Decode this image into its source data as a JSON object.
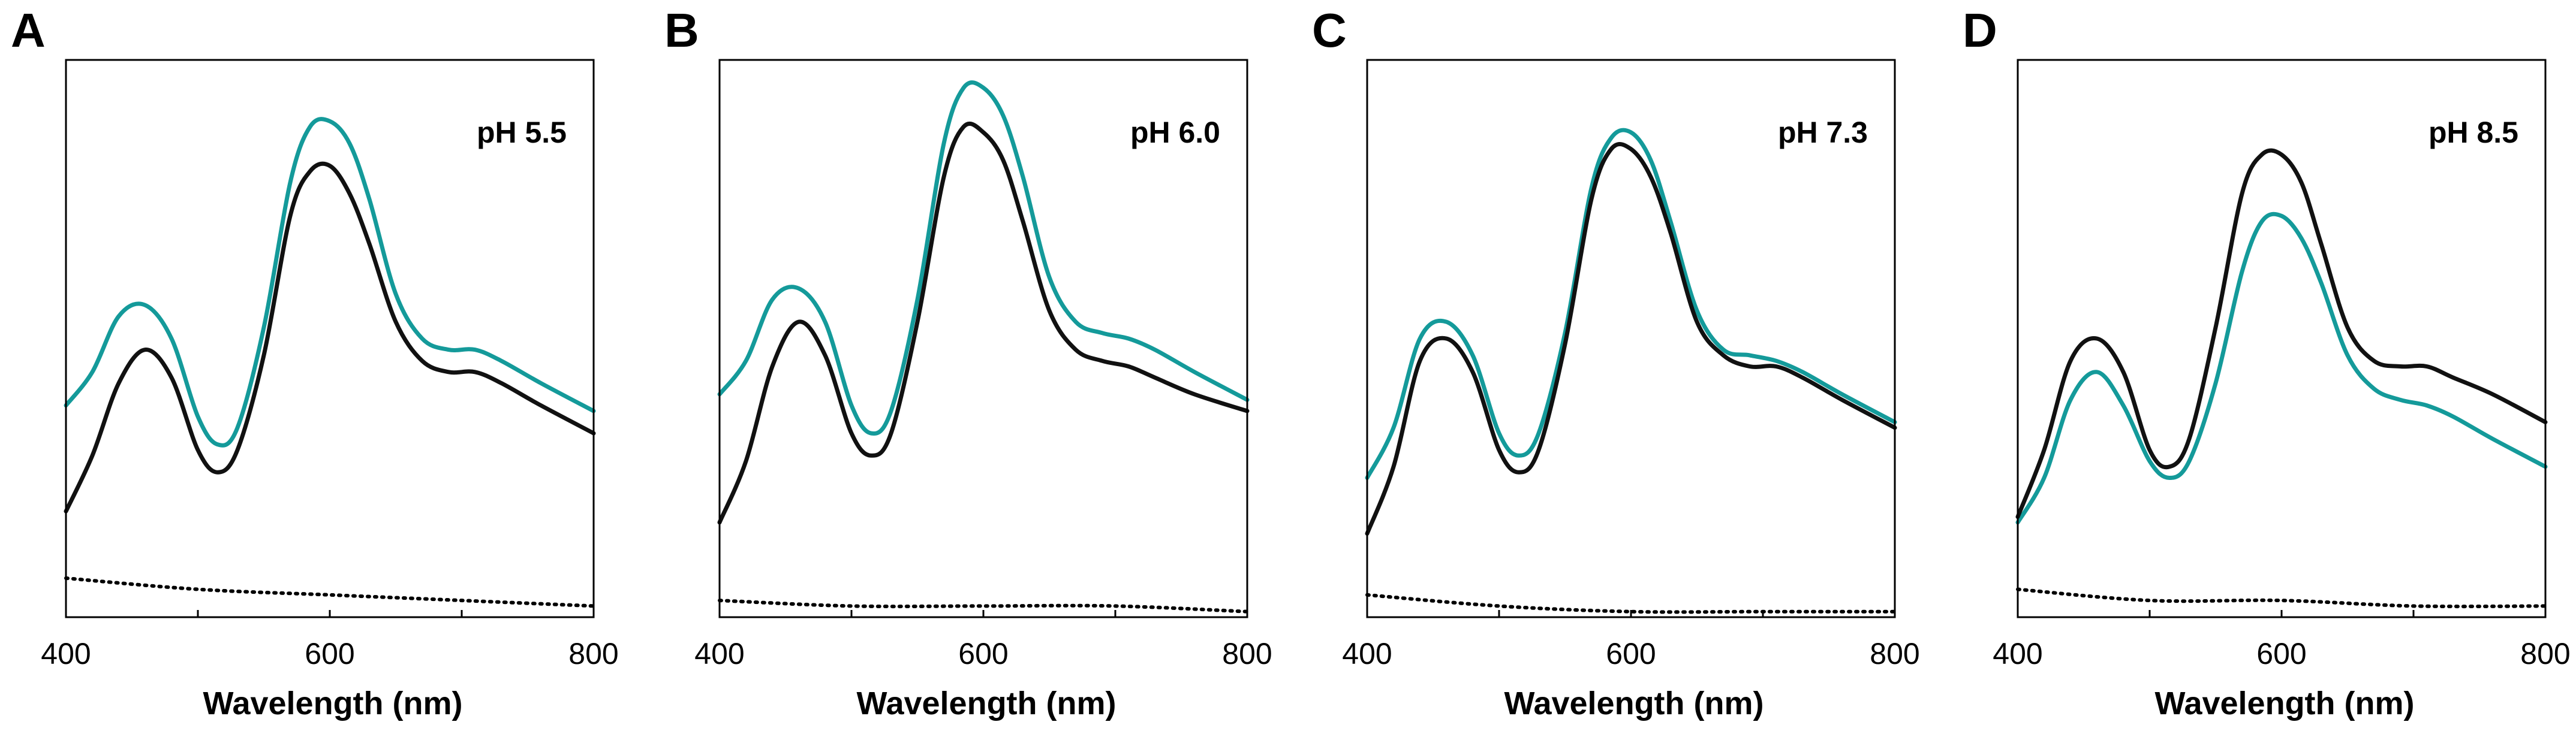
{
  "colors": {
    "teal": "#149a9a",
    "black": "#111111"
  },
  "chart_data": [
    {
      "type": "line",
      "panel_label": "A",
      "annotation": "pH 5.5",
      "xlabel": "Wavelength (nm)",
      "ylabel": "",
      "xlim": [
        400,
        800
      ],
      "ylim": [
        0,
        1
      ],
      "xticks": [
        400,
        600,
        800
      ],
      "x_tick_labels": [
        "400",
        "600",
        "800"
      ],
      "series": [
        {
          "name": "teal",
          "color": "#149a9a",
          "x": [
            400,
            420,
            440,
            460,
            480,
            500,
            515,
            530,
            550,
            570,
            585,
            600,
            615,
            630,
            650,
            670,
            690,
            710,
            730,
            760,
            800
          ],
          "y": [
            0.38,
            0.44,
            0.54,
            0.56,
            0.5,
            0.36,
            0.31,
            0.34,
            0.52,
            0.78,
            0.88,
            0.89,
            0.85,
            0.75,
            0.58,
            0.5,
            0.48,
            0.48,
            0.46,
            0.42,
            0.37
          ]
        },
        {
          "name": "black",
          "color": "#111111",
          "x": [
            400,
            420,
            440,
            460,
            480,
            500,
            515,
            530,
            550,
            570,
            585,
            600,
            615,
            630,
            650,
            670,
            690,
            710,
            730,
            760,
            800
          ],
          "y": [
            0.19,
            0.29,
            0.42,
            0.48,
            0.43,
            0.3,
            0.26,
            0.3,
            0.47,
            0.72,
            0.8,
            0.81,
            0.76,
            0.67,
            0.53,
            0.46,
            0.44,
            0.44,
            0.42,
            0.38,
            0.33
          ]
        },
        {
          "name": "baseline",
          "color": "#000000",
          "style": "dotted",
          "x": [
            400,
            500,
            600,
            700,
            800
          ],
          "y": [
            0.07,
            0.05,
            0.04,
            0.03,
            0.02
          ]
        }
      ]
    },
    {
      "type": "line",
      "panel_label": "B",
      "annotation": "pH 6.0",
      "xlabel": "Wavelength (nm)",
      "ylabel": "",
      "xlim": [
        400,
        800
      ],
      "ylim": [
        0,
        1
      ],
      "xticks": [
        400,
        600,
        800
      ],
      "x_tick_labels": [
        "400",
        "600",
        "800"
      ],
      "series": [
        {
          "name": "teal",
          "color": "#149a9a",
          "x": [
            400,
            420,
            440,
            460,
            480,
            500,
            515,
            530,
            550,
            570,
            585,
            600,
            615,
            630,
            650,
            670,
            690,
            710,
            730,
            760,
            800
          ],
          "y": [
            0.4,
            0.46,
            0.57,
            0.59,
            0.53,
            0.38,
            0.33,
            0.37,
            0.57,
            0.85,
            0.95,
            0.95,
            0.9,
            0.79,
            0.61,
            0.53,
            0.51,
            0.5,
            0.48,
            0.44,
            0.39
          ]
        },
        {
          "name": "black",
          "color": "#111111",
          "x": [
            400,
            420,
            440,
            460,
            480,
            500,
            515,
            530,
            550,
            570,
            585,
            600,
            615,
            630,
            650,
            670,
            690,
            710,
            730,
            760,
            800
          ],
          "y": [
            0.17,
            0.28,
            0.45,
            0.53,
            0.47,
            0.33,
            0.29,
            0.33,
            0.53,
            0.79,
            0.88,
            0.87,
            0.82,
            0.71,
            0.55,
            0.48,
            0.46,
            0.45,
            0.43,
            0.4,
            0.37
          ]
        },
        {
          "name": "baseline",
          "color": "#000000",
          "style": "dotted",
          "x": [
            400,
            500,
            600,
            700,
            800
          ],
          "y": [
            0.03,
            0.02,
            0.02,
            0.02,
            0.01
          ]
        }
      ]
    },
    {
      "type": "line",
      "panel_label": "C",
      "annotation": "pH 7.3",
      "xlabel": "Wavelength (nm)",
      "ylabel": "",
      "xlim": [
        400,
        800
      ],
      "ylim": [
        0,
        1
      ],
      "xticks": [
        400,
        600,
        800
      ],
      "x_tick_labels": [
        "400",
        "600",
        "800"
      ],
      "series": [
        {
          "name": "teal",
          "color": "#149a9a",
          "x": [
            400,
            420,
            440,
            460,
            480,
            500,
            515,
            530,
            550,
            570,
            585,
            600,
            615,
            630,
            650,
            670,
            690,
            710,
            730,
            760,
            800
          ],
          "y": [
            0.25,
            0.34,
            0.5,
            0.53,
            0.47,
            0.33,
            0.29,
            0.33,
            0.51,
            0.77,
            0.86,
            0.87,
            0.82,
            0.71,
            0.55,
            0.48,
            0.47,
            0.46,
            0.44,
            0.4,
            0.35
          ]
        },
        {
          "name": "black",
          "color": "#111111",
          "x": [
            400,
            420,
            440,
            460,
            480,
            500,
            515,
            530,
            550,
            570,
            585,
            600,
            615,
            630,
            650,
            670,
            690,
            710,
            730,
            760,
            800
          ],
          "y": [
            0.15,
            0.27,
            0.46,
            0.5,
            0.44,
            0.3,
            0.26,
            0.3,
            0.49,
            0.75,
            0.84,
            0.84,
            0.79,
            0.69,
            0.53,
            0.47,
            0.45,
            0.45,
            0.43,
            0.39,
            0.34
          ]
        },
        {
          "name": "baseline",
          "color": "#000000",
          "style": "dotted",
          "x": [
            400,
            500,
            600,
            700,
            800
          ],
          "y": [
            0.04,
            0.02,
            0.01,
            0.01,
            0.01
          ]
        }
      ]
    },
    {
      "type": "line",
      "panel_label": "D",
      "annotation": "pH 8.5",
      "xlabel": "Wavelength (nm)",
      "ylabel": "",
      "xlim": [
        400,
        800
      ],
      "ylim": [
        0,
        1
      ],
      "xticks": [
        400,
        600,
        800
      ],
      "x_tick_labels": [
        "400",
        "600",
        "800"
      ],
      "series": [
        {
          "name": "teal",
          "color": "#149a9a",
          "x": [
            400,
            420,
            440,
            460,
            480,
            500,
            515,
            530,
            550,
            570,
            585,
            600,
            615,
            630,
            650,
            670,
            690,
            710,
            730,
            760,
            800
          ],
          "y": [
            0.17,
            0.25,
            0.39,
            0.44,
            0.38,
            0.28,
            0.25,
            0.28,
            0.42,
            0.62,
            0.71,
            0.72,
            0.68,
            0.6,
            0.47,
            0.41,
            0.39,
            0.38,
            0.36,
            0.32,
            0.27
          ]
        },
        {
          "name": "black",
          "color": "#111111",
          "x": [
            400,
            420,
            440,
            460,
            480,
            500,
            515,
            530,
            550,
            570,
            585,
            600,
            615,
            630,
            650,
            670,
            690,
            710,
            730,
            760,
            800
          ],
          "y": [
            0.18,
            0.3,
            0.46,
            0.5,
            0.44,
            0.3,
            0.27,
            0.32,
            0.52,
            0.76,
            0.83,
            0.83,
            0.78,
            0.67,
            0.52,
            0.46,
            0.45,
            0.45,
            0.43,
            0.4,
            0.35
          ]
        },
        {
          "name": "baseline",
          "color": "#000000",
          "style": "dotted",
          "x": [
            400,
            500,
            600,
            700,
            800
          ],
          "y": [
            0.05,
            0.03,
            0.03,
            0.02,
            0.02
          ]
        }
      ]
    }
  ]
}
